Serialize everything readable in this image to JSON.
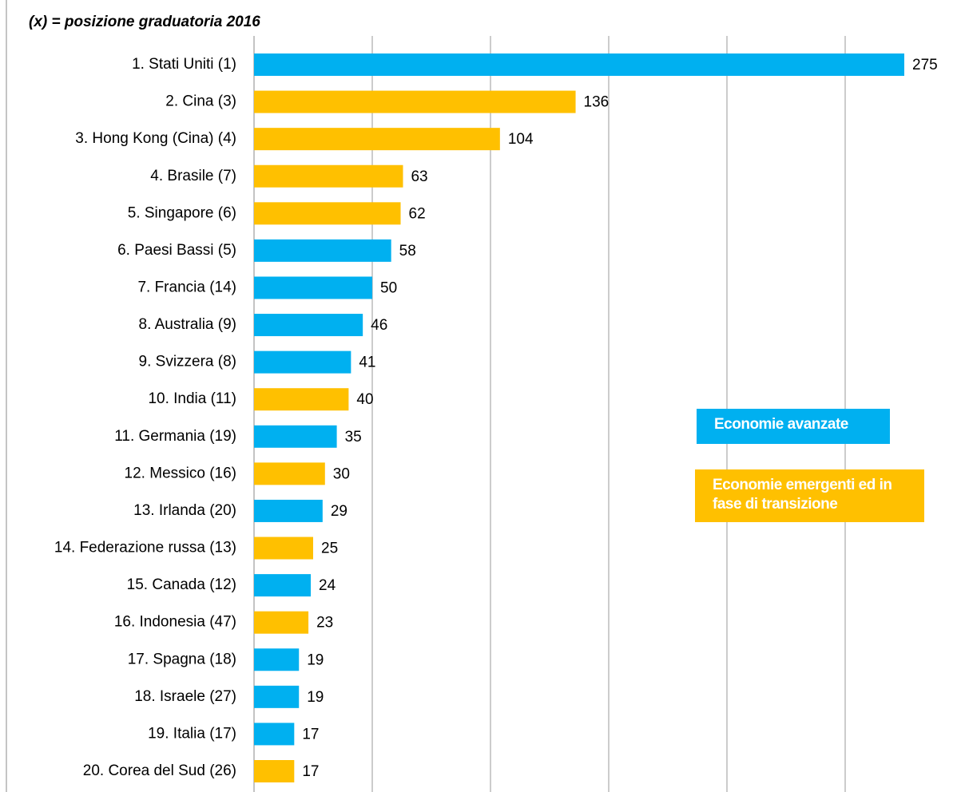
{
  "chart_data": {
    "type": "barh",
    "subtitle": "(x) = posizione graduatoria 2016",
    "categories": [
      "1. Stati Uniti (1)",
      "2. Cina (3)",
      "3. Hong Kong (Cina) (4)",
      "4. Brasile (7)",
      "5. Singapore (6)",
      "6. Paesi Bassi (5)",
      "7. Francia (14)",
      "8. Australia (9)",
      "9. Svizzera (8)",
      "10. India (11)",
      "11. Germania (19)",
      "12. Messico (16)",
      "13. Irlanda (20)",
      "14. Federazione russa (13)",
      "15. Canada (12)",
      "16. Indonesia (47)",
      "17. Spagna (18)",
      "18. Israele (27)",
      "19. Italia (17)",
      "20. Corea del Sud (26)"
    ],
    "series": [
      {
        "name": "Economie avanzate",
        "color": "#00b0f0",
        "values": [
          275,
          null,
          null,
          null,
          null,
          58,
          50,
          46,
          41,
          null,
          35,
          null,
          29,
          null,
          24,
          null,
          19,
          19,
          17,
          null
        ]
      },
      {
        "name": "Economie emergenti ed in fase di transizione",
        "color": "#ffc000",
        "values": [
          null,
          136,
          104,
          63,
          62,
          null,
          null,
          null,
          null,
          40,
          null,
          30,
          null,
          25,
          null,
          23,
          null,
          null,
          null,
          17
        ]
      }
    ],
    "xlim": [
      0,
      300
    ],
    "xticks": [
      0,
      50,
      100,
      150,
      200,
      250
    ],
    "grid": true
  }
}
